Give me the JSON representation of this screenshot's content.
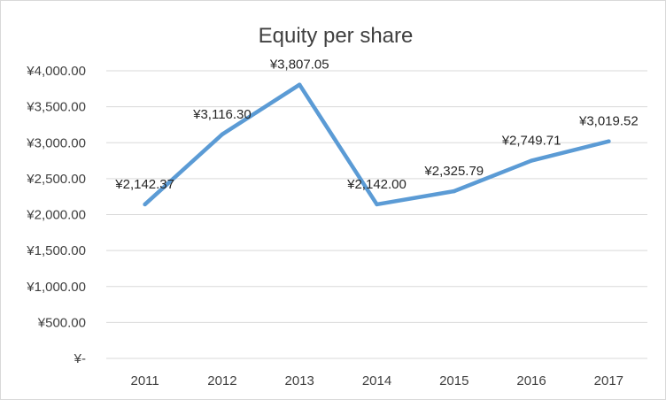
{
  "chart_data": {
    "type": "line",
    "title": "Equity per share",
    "xlabel": "",
    "ylabel": "",
    "categories": [
      "2011",
      "2012",
      "2013",
      "2014",
      "2015",
      "2016",
      "2017"
    ],
    "series": [
      {
        "values": [
          2142.37,
          3116.3,
          3807.05,
          2142.0,
          2325.79,
          2749.71,
          3019.52
        ],
        "data_labels": [
          "¥2,142.37",
          "¥3,116.30",
          "¥3,807.05",
          "¥2,142.00",
          "¥2,325.79",
          "¥2,749.71",
          "¥3,019.52"
        ],
        "color": "#5b9bd5"
      }
    ],
    "ylim": [
      0,
      4000
    ],
    "yticks": [
      0,
      500,
      1000,
      1500,
      2000,
      2500,
      3000,
      3500,
      4000
    ],
    "ytick_labels": [
      "¥-",
      "¥500.00",
      "¥1,000.00",
      "¥1,500.00",
      "¥2,000.00",
      "¥2,500.00",
      "¥3,000.00",
      "¥3,500.00",
      "¥4,000.00"
    ],
    "grid": true,
    "legend": "none"
  }
}
